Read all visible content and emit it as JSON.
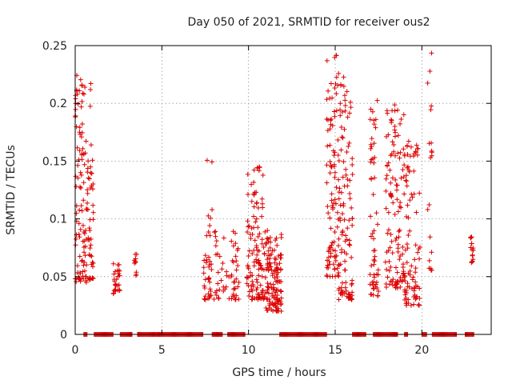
{
  "chart_data": {
    "type": "scatter",
    "title": "Day 050 of 2021, SRMTID for receiver ous2",
    "xlabel": "GPS time / hours",
    "ylabel": "SRMTID / TECUs",
    "xlim": [
      0,
      24
    ],
    "ylim": [
      0,
      0.25
    ],
    "xticks": [
      0,
      5,
      10,
      15,
      20
    ],
    "yticks": [
      0,
      0.05,
      0.1,
      0.15,
      0.2,
      0.25
    ],
    "xtick_labels": [
      "0",
      "5",
      "10",
      "15",
      "20"
    ],
    "ytick_labels": [
      "0",
      "0.05",
      "0.1",
      "0.15",
      "0.2",
      "0.25"
    ],
    "grid": true,
    "marker": "+",
    "color": "#dd0000",
    "series": [
      {
        "name": "SRMTID",
        "clusters": [
          {
            "x": [
              0.0,
              1.05
            ],
            "y": [
              0.045,
              0.226
            ],
            "n": 150
          },
          {
            "x": [
              2.2,
              2.6
            ],
            "y": [
              0.035,
              0.062
            ],
            "n": 30
          },
          {
            "x": [
              3.35,
              3.55
            ],
            "y": [
              0.05,
              0.074
            ],
            "n": 10
          },
          {
            "x": [
              7.4,
              7.9
            ],
            "y": [
              0.03,
              0.151
            ],
            "n": 40
          },
          {
            "x": [
              8.0,
              9.5
            ],
            "y": [
              0.03,
              0.09
            ],
            "n": 60
          },
          {
            "x": [
              9.9,
              11.0
            ],
            "y": [
              0.03,
              0.148
            ],
            "n": 120
          },
          {
            "x": [
              11.0,
              11.9
            ],
            "y": [
              0.02,
              0.09
            ],
            "n": 130
          },
          {
            "x": [
              14.5,
              15.2
            ],
            "y": [
              0.05,
              0.242
            ],
            "n": 100
          },
          {
            "x": [
              15.2,
              16.0
            ],
            "y": [
              0.03,
              0.226
            ],
            "n": 110
          },
          {
            "x": [
              17.0,
              17.5
            ],
            "y": [
              0.03,
              0.205
            ],
            "n": 60
          },
          {
            "x": [
              17.9,
              19.0
            ],
            "y": [
              0.04,
              0.208
            ],
            "n": 120
          },
          {
            "x": [
              19.0,
              19.9
            ],
            "y": [
              0.025,
              0.17
            ],
            "n": 90
          },
          {
            "x": [
              20.3,
              20.6
            ],
            "y": [
              0.055,
              0.245
            ],
            "n": 20
          },
          {
            "x": [
              22.8,
              23.0
            ],
            "y": [
              0.062,
              0.085
            ],
            "n": 15
          }
        ],
        "zero_bands": [
          [
            0.5,
            0.7
          ],
          [
            1.1,
            2.2
          ],
          [
            2.6,
            3.3
          ],
          [
            3.6,
            4.8
          ],
          [
            4.8,
            7.4
          ],
          [
            7.9,
            8.5
          ],
          [
            8.8,
            9.8
          ],
          [
            11.8,
            14.5
          ],
          [
            16.0,
            16.8
          ],
          [
            17.2,
            18.6
          ],
          [
            19.0,
            19.2
          ],
          [
            20.0,
            20.3
          ],
          [
            20.6,
            22.0
          ],
          [
            22.5,
            23.0
          ]
        ]
      }
    ]
  }
}
